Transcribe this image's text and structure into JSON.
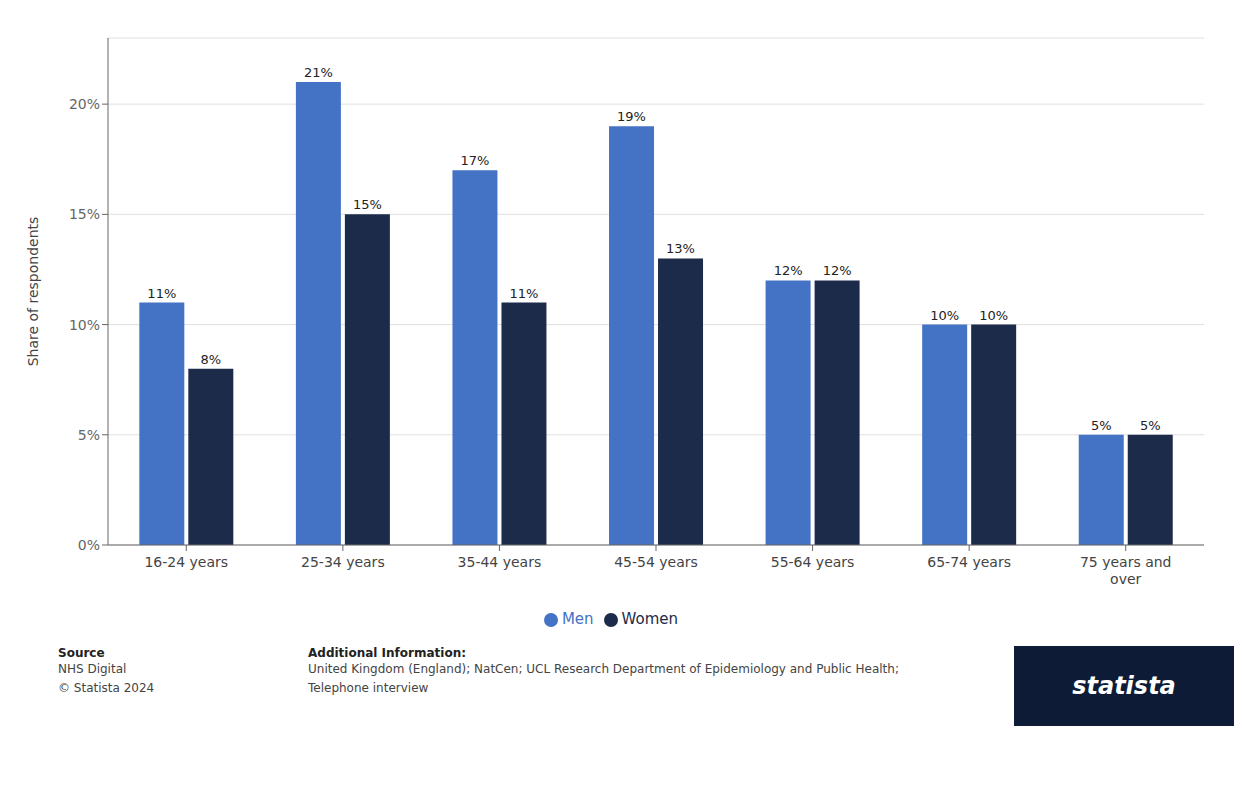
{
  "chart_data": {
    "type": "bar",
    "categories": [
      "16-24 years",
      "25-34 years",
      "35-44 years",
      "45-54 years",
      "55-64 years",
      "65-74 years",
      "75 years and\nover"
    ],
    "series": [
      {
        "name": "Men",
        "color": "#4472c4",
        "values": [
          11,
          21,
          17,
          19,
          12,
          10,
          5
        ],
        "value_labels": [
          "11%",
          "21%",
          "17%",
          "19%",
          "12%",
          "10%",
          "5%"
        ]
      },
      {
        "name": "Women",
        "color": "#1c2b4a",
        "values": [
          8,
          15,
          11,
          13,
          12,
          10,
          5
        ],
        "value_labels": [
          "8%",
          "15%",
          "11%",
          "13%",
          "12%",
          "10%",
          "5%"
        ]
      }
    ],
    "ylabel": "Share of respondents",
    "ylim": [
      0,
      23
    ],
    "yticks": [
      {
        "value": 0,
        "label": "0%"
      },
      {
        "value": 5,
        "label": "5%"
      },
      {
        "value": 10,
        "label": "10%"
      },
      {
        "value": 15,
        "label": "15%"
      },
      {
        "value": 20,
        "label": "20%"
      }
    ],
    "grid": true,
    "legend": "bottom",
    "data_labels": true,
    "annotations": [
      "Source",
      "NHS Digital\n© Statista 2024",
      "Additional Information:",
      "United Kingdom (England); NatCen; UCL Research Department of Epidemiology and Public Health;\nTelephone interview",
      "statista"
    ]
  }
}
